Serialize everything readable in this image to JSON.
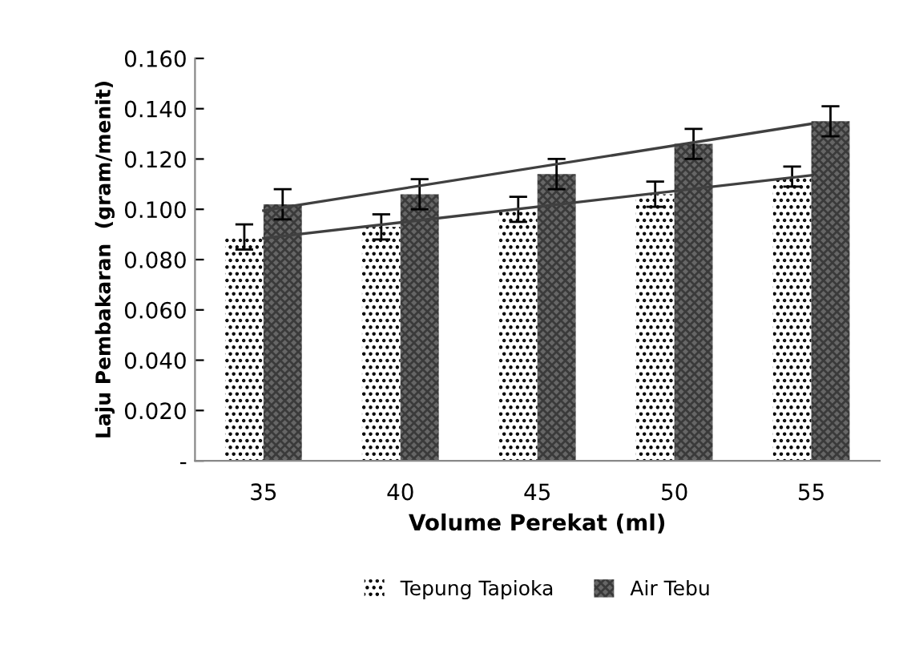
{
  "chart_data": {
    "type": "bar",
    "xlabel": "Volume Perekat (ml)",
    "ylabel": "Laju Pembakaran  (gram/menit)",
    "categories": [
      "35",
      "40",
      "45",
      "50",
      "55"
    ],
    "series": [
      {
        "name": "Tepung Tapioka",
        "color": "#ffffff",
        "values": [
          0.089,
          0.093,
          0.1,
          0.106,
          0.113
        ],
        "errors": [
          0.005,
          0.005,
          0.005,
          0.005,
          0.004
        ]
      },
      {
        "name": "Air Tebu",
        "color": "#666666",
        "values": [
          0.102,
          0.106,
          0.114,
          0.126,
          0.135
        ],
        "errors": [
          0.006,
          0.006,
          0.006,
          0.006,
          0.006
        ]
      },
      {
        "type": "line",
        "color": "#404040",
        "x": [
          "35",
          "55"
        ],
        "values": [
          0.0885,
          0.1135
        ]
      },
      {
        "type": "line",
        "color": "#404040",
        "x": [
          "35",
          "55"
        ],
        "values": [
          0.0995,
          0.134
        ]
      }
    ],
    "ylim": [
      0,
      0.16
    ],
    "yticks": [
      {
        "value": 0,
        "label": "-"
      },
      {
        "value": 0.02,
        "label": "0.020"
      },
      {
        "value": 0.04,
        "label": "0.040"
      },
      {
        "value": 0.06,
        "label": "0.060"
      },
      {
        "value": 0.08,
        "label": "0.080"
      },
      {
        "value": 0.1,
        "label": "0.100"
      },
      {
        "value": 0.12,
        "label": "0.120"
      },
      {
        "value": 0.14,
        "label": "0.140"
      },
      {
        "value": 0.16,
        "label": "0.160"
      }
    ],
    "grid": false,
    "legend": "bottom"
  }
}
